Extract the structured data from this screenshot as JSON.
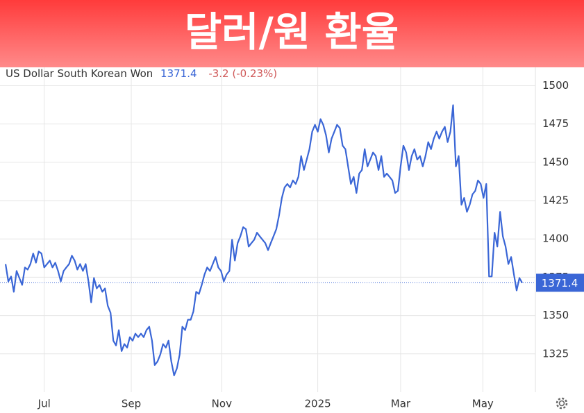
{
  "chart_data": {
    "type": "line",
    "title": "달러/원 환율",
    "subtitle": "US Dollar South Korean Won",
    "change": "-3.2 (-0.23%)",
    "series": [
      {
        "name": "US Dollar South Korean Won",
        "color": "#3a66d6",
        "values": [
          1383.6,
          1372.3,
          1375.5,
          1365.5,
          1379.1,
          1374.5,
          1370,
          1381.4,
          1380,
          1383.6,
          1390.5,
          1384.5,
          1391.8,
          1390.5,
          1381.4,
          1383.6,
          1385.9,
          1381.4,
          1384.5,
          1379.1,
          1372.3,
          1379.1,
          1381.4,
          1383.6,
          1389.1,
          1385.9,
          1380,
          1383.6,
          1379.1,
          1383.6,
          1372.3,
          1358.6,
          1374.5,
          1367.7,
          1370,
          1365.5,
          1367.7,
          1356.4,
          1351.8,
          1333.6,
          1330.5,
          1340.5,
          1326.8,
          1331.4,
          1329.1,
          1335.9,
          1333.6,
          1338.2,
          1335.9,
          1338.2,
          1335.9,
          1340.5,
          1342.7,
          1333.6,
          1317.7,
          1320,
          1324.5,
          1331.4,
          1329.1,
          1333.6,
          1320,
          1310.9,
          1315.5,
          1324.5,
          1342.7,
          1340.5,
          1347.3,
          1347.3,
          1352.7,
          1365.5,
          1364.1,
          1370,
          1376.8,
          1381.4,
          1379.1,
          1383.6,
          1388.2,
          1381.4,
          1379.1,
          1372.3,
          1376.8,
          1379.1,
          1399.5,
          1385.9,
          1397.3,
          1401.8,
          1407.7,
          1406.4,
          1395,
          1397.3,
          1399.5,
          1404.1,
          1401.8,
          1399.5,
          1397.3,
          1392.7,
          1397.3,
          1401.8,
          1406.4,
          1415.5,
          1426.8,
          1433.6,
          1435.9,
          1433.6,
          1438.2,
          1435.9,
          1440.5,
          1454.1,
          1445,
          1451.8,
          1458.6,
          1470,
          1474.5,
          1470,
          1478.2,
          1474.5,
          1467.7,
          1456.4,
          1465.5,
          1470,
          1474.5,
          1472.3,
          1460.9,
          1458.6,
          1447.3,
          1435.9,
          1440.5,
          1430,
          1442.7,
          1445,
          1458.6,
          1447.3,
          1451.8,
          1456.4,
          1454.1,
          1445,
          1454.1,
          1440.5,
          1442.7,
          1440.5,
          1438.2,
          1430,
          1431.4,
          1447.3,
          1460.9,
          1456.4,
          1445,
          1454.1,
          1458.6,
          1451.8,
          1454.1,
          1447.3,
          1454.1,
          1463.2,
          1458.6,
          1465.5,
          1470,
          1465.5,
          1470,
          1473.2,
          1463.2,
          1470,
          1487.3,
          1447.3,
          1454.1,
          1422.3,
          1426.8,
          1417.7,
          1422.3,
          1429.1,
          1431.4,
          1438.2,
          1435.9,
          1426.8,
          1435.9,
          1375.5,
          1375.5,
          1404.1,
          1395,
          1417.7,
          1401.8,
          1395,
          1383.6,
          1388.2,
          1376.8,
          1366.4,
          1374.5,
          1371.4
        ]
      }
    ],
    "ylim": [
      1300,
      1512
    ],
    "yticks": [
      1325,
      1350,
      1375,
      1400,
      1425,
      1450,
      1475,
      1500
    ],
    "xticks": [
      {
        "value": 14,
        "label": "Jul"
      },
      {
        "value": 45.5,
        "label": "Sep"
      },
      {
        "value": 78.25,
        "label": "Nov"
      },
      {
        "value": 113,
        "label": "2025"
      },
      {
        "value": 143,
        "label": "Mar"
      },
      {
        "value": 172.75,
        "label": "May"
      }
    ],
    "grid": true
  }
}
